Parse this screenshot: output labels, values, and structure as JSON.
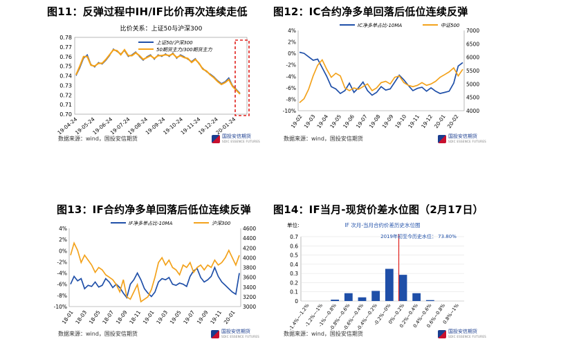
{
  "colors": {
    "blue": "#1f4fa8",
    "orange": "#f3a21b",
    "red": "#e0201c",
    "axis": "#888888",
    "grid": "#dddddd"
  },
  "logo": {
    "name": "国投安信期货",
    "en": "SDIC ESSENCE FUTURES"
  },
  "panels": {
    "p11": {
      "title": "图11：反弹过程中IH/IF比价再次连续走低",
      "source": "数据来源：wind，国投安信期货",
      "chart_data": {
        "type": "line",
        "title": "比价关系：上证50与沪深300",
        "yticks": [
          "0.70",
          "0.71",
          "0.72",
          "0.73",
          "0.74",
          "0.75",
          "0.76",
          "0.77",
          "0.78"
        ],
        "ylim": [
          0.7,
          0.78
        ],
        "xticks": [
          "19-04-24",
          "19-05-24",
          "19-06-24",
          "19-07-24",
          "19-08-24",
          "19-09-24",
          "19-10-24",
          "19-11-24",
          "19-12-24",
          "20-01-24"
        ],
        "series": [
          {
            "name": "上证50/沪深300",
            "color": "#1f4fa8",
            "values": [
              0.74,
              0.748,
              0.758,
              0.762,
              0.752,
              0.749,
              0.754,
              0.752,
              0.756,
              0.761,
              0.768,
              0.765,
              0.763,
              0.766,
              0.76,
              0.762,
              0.765,
              0.76,
              0.756,
              0.76,
              0.762,
              0.757,
              0.762,
              0.76,
              0.763,
              0.76,
              0.764,
              0.758,
              0.762,
              0.76,
              0.757,
              0.755,
              0.758,
              0.752,
              0.748,
              0.744,
              0.742,
              0.739,
              0.735,
              0.732,
              0.734,
              0.738,
              0.73,
              0.726,
              0.722
            ]
          },
          {
            "name": "50期货主力/300期货主力",
            "color": "#f3a21b",
            "values": [
              0.741,
              0.75,
              0.76,
              0.76,
              0.751,
              0.75,
              0.753,
              0.753,
              0.757,
              0.762,
              0.767,
              0.766,
              0.762,
              0.767,
              0.761,
              0.761,
              0.764,
              0.761,
              0.757,
              0.759,
              0.761,
              0.758,
              0.761,
              0.761,
              0.762,
              0.761,
              0.763,
              0.759,
              0.761,
              0.759,
              0.758,
              0.754,
              0.757,
              0.753,
              0.747,
              0.745,
              0.741,
              0.738,
              0.734,
              0.731,
              0.733,
              0.736,
              0.729,
              0.725,
              0.721
            ]
          }
        ]
      }
    },
    "p12": {
      "title": "图12：IC合约净多单回落后低位连续反弹",
      "source": "数据来源：wind，国投安信期货",
      "chart_data": {
        "type": "line",
        "yticks_left": [
          "-10%",
          "-8%",
          "-6%",
          "-4%",
          "-2%",
          "0%",
          "2%",
          "4%"
        ],
        "ylim_left": [
          -10,
          4
        ],
        "yticks_right": [
          "4000",
          "4500",
          "5000",
          "5500",
          "6000",
          "6500",
          "7000"
        ],
        "ylim_right": [
          4000,
          7000
        ],
        "xticks": [
          "19-02",
          "19-03",
          "19-04",
          "19-05",
          "19-06",
          "19-07",
          "19-08",
          "19-09",
          "19-10",
          "19-11",
          "19-12",
          "20-01",
          "20-02"
        ],
        "series": [
          {
            "name": "IC净多单占比-10MA",
            "color": "#1f4fa8",
            "axis": "left",
            "values": [
              0.2,
              0.0,
              -0.6,
              -1.2,
              -1.0,
              -2.5,
              -4.0,
              -5.8,
              -6.2,
              -7.0,
              -6.5,
              -5.2,
              -6.8,
              -6.0,
              -5.0,
              -6.5,
              -7.3,
              -6.8,
              -5.8,
              -6.4,
              -6.2,
              -5.0,
              -3.8,
              -4.6,
              -5.6,
              -6.5,
              -6.1,
              -5.9,
              -6.6,
              -6.0,
              -6.6,
              -7.0,
              -6.8,
              -6.6,
              -5.2,
              -2.2,
              -1.6
            ]
          },
          {
            "name": "中证500",
            "color": "#f3a21b",
            "axis": "right",
            "values": [
              4300,
              4450,
              4800,
              5300,
              5700,
              5900,
              5550,
              5250,
              5400,
              5300,
              4850,
              4750,
              4850,
              4800,
              4900,
              5000,
              4750,
              4850,
              5050,
              5100,
              5000,
              5250,
              5300,
              5050,
              4950,
              4900,
              4950,
              5050,
              4950,
              5000,
              5100,
              5250,
              5350,
              5450,
              5600,
              5300,
              5550
            ]
          }
        ]
      }
    },
    "p13": {
      "title": "图13：IF合约净多单回落后低位连续反弹",
      "source": "数据来源：wind，国投安信期货",
      "chart_data": {
        "type": "line",
        "yticks_left": [
          "-10%",
          "-8%",
          "-6%",
          "-4%",
          "-2%",
          "0%",
          "2%",
          "4%"
        ],
        "ylim_left": [
          -10,
          4
        ],
        "yticks_right": [
          "3000",
          "3200",
          "3400",
          "3600",
          "3800",
          "4000",
          "4200",
          "4400",
          "4600"
        ],
        "ylim_right": [
          3000,
          4600
        ],
        "xticks": [
          "18-01",
          "18-03",
          "18-05",
          "18-07",
          "18-09",
          "18-11",
          "19-01",
          "19-03",
          "19-05",
          "19-07",
          "19-09",
          "19-11",
          "20-01"
        ],
        "series": [
          {
            "name": "IF净多单占比-10MA",
            "color": "#1f4fa8",
            "axis": "left",
            "values": [
              -6.0,
              -4.6,
              -5.4,
              -5.0,
              -6.8,
              -6.2,
              -6.4,
              -5.6,
              -6.5,
              -6.2,
              -5.0,
              -5.6,
              -6.6,
              -6.0,
              -6.6,
              -7.6,
              -8.4,
              -6.0,
              -5.2,
              -4.0,
              -5.2,
              -6.8,
              -7.6,
              -8.2,
              -7.4,
              -5.6,
              -5.0,
              -5.2,
              -4.8,
              -6.0,
              -6.2,
              -5.8,
              -6.0,
              -6.4,
              -4.6,
              -3.6,
              -3.2,
              -4.8,
              -5.6,
              -5.2,
              -4.6,
              -3.0,
              -4.6,
              -5.6,
              -6.2,
              -6.8,
              -7.4,
              -7.8,
              -4.0
            ]
          },
          {
            "name": "沪深300",
            "color": "#f3a21b",
            "axis": "right",
            "values": [
              4050,
              4300,
              4150,
              3900,
              4050,
              3950,
              3850,
              3700,
              3800,
              3750,
              3650,
              3600,
              3550,
              3450,
              3300,
              3550,
              3200,
              3150,
              3300,
              3450,
              3100,
              3150,
              3200,
              3350,
              3600,
              3900,
              4000,
              3850,
              3950,
              3800,
              3750,
              3650,
              3850,
              3800,
              3900,
              3700,
              3800,
              3850,
              3750,
              3850,
              3800,
              3950,
              3850,
              3900,
              4000,
              4150,
              4000,
              3850,
              4050
            ]
          }
        ]
      }
    },
    "p14": {
      "title": "图14：IF当月-现货价差水位图（2月17日）",
      "source": "数据来源：wind，国投安信期货",
      "chart_data": {
        "type": "bar",
        "unit_label": "单位:",
        "title": "IF 次月-当月合约价差历史水位图",
        "annotation": "2019年初至今历史水位： 73.80%",
        "ylim": [
          0,
          0.7
        ],
        "yticks": [
          "0",
          "0.1",
          "0.2",
          "0.3",
          "0.4",
          "0.5",
          "0.6",
          "0.7"
        ],
        "categories": [
          "-1.4%~-1.2%",
          "-1.2%~-1%",
          "-1%~-0.8%",
          "-0.8%~-0.6%",
          "-0.6%~-0.4%",
          "-0.4%~-0.2%",
          "-0.2%~0%",
          "0%~0.2%",
          "0.2%~0.4%",
          "0.4%~0.6%",
          "0.6%~0.8%",
          "0.8%~1%"
        ],
        "values": [
          0.0,
          0.0,
          0.015,
          0.085,
          0.04,
          0.11,
          0.35,
          0.285,
          0.085,
          0.01,
          0.0,
          0.0
        ],
        "marker_category": "0%~0.2%"
      }
    }
  }
}
